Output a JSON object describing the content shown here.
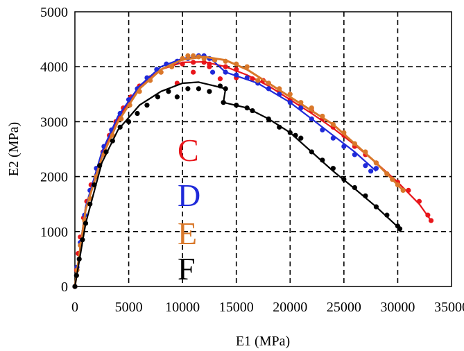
{
  "chart_data": {
    "type": "scatter",
    "xlabel": "E1 (MPa)",
    "ylabel": "E2 (MPa)",
    "xlim": [
      0,
      35000
    ],
    "ylim": [
      0,
      5000
    ],
    "x_ticks": [
      0,
      5000,
      10000,
      15000,
      20000,
      25000,
      30000,
      35000
    ],
    "y_ticks": [
      0,
      1000,
      2000,
      3000,
      4000,
      5000
    ],
    "grid": true,
    "legend": [
      "C",
      "D",
      "E",
      "F"
    ],
    "series": [
      {
        "name": "C",
        "color": "#e8161b",
        "points": [
          [
            0,
            0
          ],
          [
            150,
            300
          ],
          [
            300,
            600
          ],
          [
            500,
            900
          ],
          [
            800,
            1250
          ],
          [
            1100,
            1550
          ],
          [
            1500,
            1850
          ],
          [
            2000,
            2150
          ],
          [
            2600,
            2450
          ],
          [
            3200,
            2750
          ],
          [
            3800,
            3000
          ],
          [
            4500,
            3250
          ],
          [
            5200,
            3450
          ],
          [
            6000,
            3650
          ],
          [
            7000,
            3800
          ],
          [
            8000,
            3900
          ],
          [
            9000,
            4000
          ],
          [
            10000,
            4050
          ],
          [
            11000,
            4080
          ],
          [
            12000,
            4080
          ],
          [
            12500,
            4050
          ],
          [
            9500,
            3700
          ],
          [
            11000,
            3900
          ],
          [
            12500,
            4000
          ],
          [
            14000,
            4000
          ],
          [
            15000,
            3950
          ],
          [
            13500,
            3780
          ],
          [
            15000,
            3800
          ],
          [
            16500,
            3780
          ],
          [
            17500,
            3750
          ],
          [
            18000,
            3700
          ],
          [
            19000,
            3550
          ],
          [
            20000,
            3400
          ],
          [
            21000,
            3300
          ],
          [
            22000,
            3200
          ],
          [
            23000,
            3050
          ],
          [
            24000,
            2900
          ],
          [
            25000,
            2750
          ],
          [
            26000,
            2550
          ],
          [
            27000,
            2400
          ],
          [
            28000,
            2250
          ],
          [
            29000,
            2050
          ],
          [
            30000,
            1900
          ],
          [
            31000,
            1750
          ],
          [
            32000,
            1550
          ],
          [
            32800,
            1300
          ],
          [
            33100,
            1200
          ]
        ],
        "fit": [
          [
            0,
            0
          ],
          [
            1000,
            1450
          ],
          [
            2500,
            2400
          ],
          [
            4000,
            3050
          ],
          [
            6000,
            3650
          ],
          [
            8000,
            3950
          ],
          [
            10000,
            4080
          ],
          [
            12000,
            4090
          ],
          [
            14000,
            4000
          ],
          [
            16000,
            3850
          ],
          [
            18000,
            3650
          ],
          [
            20000,
            3400
          ],
          [
            22000,
            3150
          ],
          [
            24000,
            2880
          ],
          [
            26000,
            2580
          ],
          [
            28000,
            2250
          ],
          [
            30000,
            1900
          ],
          [
            32000,
            1500
          ],
          [
            33100,
            1200
          ]
        ]
      },
      {
        "name": "D",
        "color": "#1f2ad9",
        "points": [
          [
            0,
            0
          ],
          [
            200,
            350
          ],
          [
            500,
            800
          ],
          [
            900,
            1300
          ],
          [
            1400,
            1750
          ],
          [
            2000,
            2150
          ],
          [
            2700,
            2550
          ],
          [
            3400,
            2850
          ],
          [
            4200,
            3150
          ],
          [
            5000,
            3400
          ],
          [
            5800,
            3600
          ],
          [
            6700,
            3800
          ],
          [
            7600,
            3950
          ],
          [
            8500,
            4050
          ],
          [
            9500,
            4100
          ],
          [
            10500,
            4150
          ],
          [
            11500,
            4200
          ],
          [
            12000,
            4200
          ],
          [
            12500,
            4150
          ],
          [
            12800,
            3900
          ],
          [
            14000,
            3900
          ],
          [
            15000,
            3850
          ],
          [
            16000,
            3800
          ],
          [
            17000,
            3700
          ],
          [
            18000,
            3600
          ],
          [
            19000,
            3500
          ],
          [
            20000,
            3350
          ],
          [
            21000,
            3250
          ],
          [
            22000,
            3050
          ],
          [
            23000,
            2850
          ],
          [
            24000,
            2700
          ],
          [
            25000,
            2550
          ],
          [
            26000,
            2400
          ],
          [
            27000,
            2200
          ],
          [
            27500,
            2100
          ],
          [
            28000,
            2150
          ]
        ],
        "fit": [
          [
            0,
            0
          ],
          [
            1000,
            1450
          ],
          [
            2500,
            2450
          ],
          [
            4000,
            3100
          ],
          [
            6000,
            3650
          ],
          [
            8000,
            4000
          ],
          [
            10000,
            4150
          ],
          [
            12000,
            4200
          ],
          [
            12600,
            4150
          ],
          [
            14000,
            3900
          ],
          [
            17000,
            3700
          ],
          [
            20000,
            3350
          ],
          [
            22000,
            3050
          ],
          [
            24000,
            2750
          ],
          [
            26000,
            2450
          ],
          [
            28000,
            2100
          ]
        ]
      },
      {
        "name": "E",
        "color": "#d9782a",
        "points": [
          [
            0,
            0
          ],
          [
            200,
            300
          ],
          [
            500,
            750
          ],
          [
            900,
            1200
          ],
          [
            1400,
            1600
          ],
          [
            2000,
            2000
          ],
          [
            2700,
            2400
          ],
          [
            3500,
            2750
          ],
          [
            4300,
            3050
          ],
          [
            5100,
            3300
          ],
          [
            6000,
            3550
          ],
          [
            7000,
            3750
          ],
          [
            8000,
            3900
          ],
          [
            9000,
            4000
          ],
          [
            10000,
            4150
          ],
          [
            10500,
            4200
          ],
          [
            11000,
            4200
          ],
          [
            11500,
            4180
          ],
          [
            12000,
            4150
          ],
          [
            13000,
            4120
          ],
          [
            14000,
            4100
          ],
          [
            15000,
            4050
          ],
          [
            16000,
            4000
          ],
          [
            17000,
            3750
          ],
          [
            18000,
            3700
          ],
          [
            19000,
            3600
          ],
          [
            20000,
            3500
          ],
          [
            21000,
            3350
          ],
          [
            22000,
            3250
          ],
          [
            23000,
            3100
          ],
          [
            24000,
            2950
          ],
          [
            25000,
            2800
          ],
          [
            26000,
            2600
          ],
          [
            27000,
            2450
          ],
          [
            28000,
            2250
          ],
          [
            29000,
            2050
          ],
          [
            29500,
            1950
          ],
          [
            30000,
            1850
          ],
          [
            30500,
            1750
          ]
        ],
        "fit": [
          [
            0,
            0
          ],
          [
            1000,
            1400
          ],
          [
            2500,
            2350
          ],
          [
            4000,
            3000
          ],
          [
            6000,
            3600
          ],
          [
            8000,
            3950
          ],
          [
            10000,
            4130
          ],
          [
            12000,
            4180
          ],
          [
            14000,
            4120
          ],
          [
            16000,
            3950
          ],
          [
            18000,
            3700
          ],
          [
            20000,
            3450
          ],
          [
            22000,
            3200
          ],
          [
            24000,
            2950
          ],
          [
            26000,
            2600
          ],
          [
            28000,
            2250
          ],
          [
            30500,
            1750
          ]
        ]
      },
      {
        "name": "F",
        "color": "#000000",
        "points": [
          [
            0,
            0
          ],
          [
            150,
            200
          ],
          [
            400,
            500
          ],
          [
            700,
            850
          ],
          [
            1000,
            1150
          ],
          [
            1400,
            1500
          ],
          [
            1800,
            1850
          ],
          [
            2300,
            2200
          ],
          [
            2900,
            2450
          ],
          [
            3500,
            2650
          ],
          [
            4200,
            2900
          ],
          [
            5000,
            3000
          ],
          [
            5800,
            3150
          ],
          [
            6700,
            3300
          ],
          [
            7700,
            3450
          ],
          [
            8700,
            3550
          ],
          [
            9500,
            3450
          ],
          [
            10500,
            3600
          ],
          [
            11500,
            3600
          ],
          [
            12500,
            3550
          ],
          [
            13500,
            3650
          ],
          [
            14000,
            3600
          ],
          [
            13800,
            3350
          ],
          [
            15000,
            3300
          ],
          [
            16000,
            3250
          ],
          [
            16500,
            3200
          ],
          [
            18000,
            3050
          ],
          [
            19000,
            2900
          ],
          [
            20000,
            2800
          ],
          [
            20500,
            2750
          ],
          [
            21000,
            2700
          ],
          [
            22000,
            2450
          ],
          [
            23000,
            2300
          ],
          [
            24000,
            2150
          ],
          [
            25000,
            1950
          ],
          [
            26000,
            1800
          ],
          [
            27000,
            1650
          ],
          [
            28000,
            1450
          ],
          [
            29000,
            1300
          ],
          [
            30000,
            1100
          ],
          [
            30200,
            1050
          ]
        ],
        "fit": [
          [
            0,
            0
          ],
          [
            1000,
            1150
          ],
          [
            2500,
            2250
          ],
          [
            4000,
            2850
          ],
          [
            6000,
            3300
          ],
          [
            8000,
            3550
          ],
          [
            10000,
            3700
          ],
          [
            11500,
            3720
          ],
          [
            13000,
            3650
          ],
          [
            14000,
            3600
          ],
          [
            13800,
            3350
          ],
          [
            16000,
            3250
          ],
          [
            18000,
            3050
          ],
          [
            20000,
            2800
          ],
          [
            22000,
            2450
          ],
          [
            24000,
            2100
          ],
          [
            26000,
            1780
          ],
          [
            28000,
            1450
          ],
          [
            30200,
            1050
          ]
        ]
      }
    ]
  }
}
